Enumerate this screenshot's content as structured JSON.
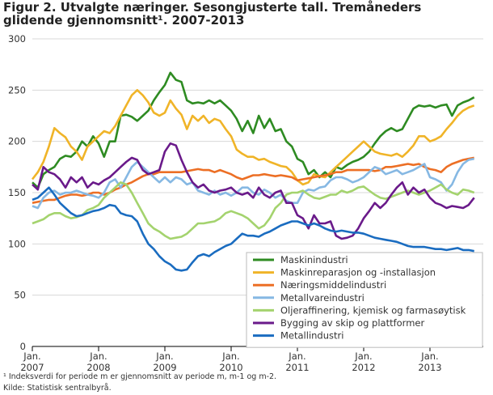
{
  "chart_data": {
    "type": "line",
    "title": "Figur 2. Utvalgte næringer. Sesongjusterte tall. Tremåneders glidende gjennomsnitt¹. 2007-2013",
    "notes": [
      "¹ Indeksverdi for periode m er gjennomsnitt av periode m, m-1 og m-2.",
      "Kilde: Statistisk sentralbyrå."
    ],
    "categories": [
      "Jan. 2007",
      null,
      null,
      null,
      null,
      null,
      null,
      null,
      null,
      null,
      null,
      null,
      "Jan. 2008",
      null,
      null,
      null,
      null,
      null,
      null,
      null,
      null,
      null,
      null,
      null,
      "Jan. 2009",
      null,
      null,
      null,
      null,
      null,
      null,
      null,
      null,
      null,
      null,
      null,
      "Jan. 2010",
      null,
      null,
      null,
      null,
      null,
      null,
      null,
      null,
      null,
      null,
      null,
      "Jan. 2011",
      null,
      null,
      null,
      null,
      null,
      null,
      null,
      null,
      null,
      null,
      null,
      "Jan. 2012",
      null,
      null,
      null,
      null,
      null,
      null,
      null,
      null,
      null,
      null,
      null,
      "Jan. 2013",
      null,
      null,
      null,
      null,
      null,
      null,
      null,
      null
    ],
    "ylim": [
      0,
      300
    ],
    "yticks": [
      0,
      50,
      100,
      150,
      200,
      250,
      300
    ],
    "grid": true,
    "legend": "bottom-right",
    "series": [
      {
        "name": "Maskinindustri",
        "color": "#2e8b22",
        "values": [
          160,
          155,
          168,
          172,
          175,
          183,
          186,
          185,
          190,
          200,
          195,
          205,
          198,
          185,
          200,
          200,
          225,
          226,
          224,
          220,
          225,
          230,
          240,
          248,
          255,
          267,
          260,
          258,
          240,
          237,
          238,
          237,
          240,
          237,
          240,
          235,
          230,
          222,
          210,
          220,
          208,
          225,
          213,
          222,
          210,
          212,
          200,
          195,
          183,
          180,
          168,
          172,
          165,
          170,
          165,
          175,
          173,
          177,
          180,
          182,
          185,
          190,
          198,
          205,
          210,
          213,
          210,
          212,
          222,
          232,
          235,
          234,
          235,
          233,
          235,
          236,
          225,
          235,
          238,
          240,
          243
        ]
      },
      {
        "name": "Maskinreparasjon og -installasjon",
        "color": "#f0b428",
        "values": [
          163,
          170,
          180,
          195,
          213,
          208,
          204,
          195,
          190,
          182,
          195,
          200,
          205,
          210,
          208,
          215,
          225,
          235,
          245,
          250,
          245,
          238,
          228,
          225,
          228,
          240,
          232,
          226,
          212,
          225,
          220,
          225,
          218,
          222,
          220,
          212,
          205,
          192,
          188,
          185,
          185,
          182,
          183,
          180,
          178,
          176,
          175,
          170,
          162,
          158,
          160,
          168,
          166,
          165,
          170,
          175,
          180,
          185,
          190,
          195,
          200,
          195,
          190,
          188,
          187,
          186,
          188,
          185,
          190,
          196,
          205,
          205,
          200,
          202,
          205,
          212,
          218,
          225,
          230,
          233,
          235
        ]
      },
      {
        "name": "Næringsmiddelindustri",
        "color": "#ec6f25",
        "values": [
          140,
          141,
          142,
          143,
          143,
          145,
          147,
          148,
          148,
          147,
          148,
          150,
          150,
          148,
          150,
          153,
          155,
          158,
          160,
          163,
          166,
          168,
          168,
          170,
          170,
          170,
          170,
          170,
          171,
          172,
          173,
          172,
          172,
          170,
          172,
          170,
          168,
          165,
          163,
          165,
          167,
          167,
          168,
          167,
          166,
          167,
          166,
          165,
          162,
          163,
          164,
          165,
          166,
          167,
          168,
          170,
          170,
          172,
          172,
          172,
          172,
          172,
          171,
          172,
          175,
          175,
          176,
          177,
          178,
          177,
          178,
          175,
          173,
          172,
          170,
          175,
          178,
          180,
          182,
          183,
          184
        ]
      },
      {
        "name": "Metallvareindustri",
        "color": "#86b8e3",
        "values": [
          137,
          135,
          145,
          150,
          152,
          148,
          150,
          150,
          152,
          150,
          148,
          147,
          145,
          150,
          160,
          163,
          155,
          165,
          175,
          180,
          175,
          170,
          165,
          160,
          165,
          160,
          165,
          163,
          158,
          160,
          152,
          150,
          148,
          152,
          148,
          150,
          147,
          150,
          155,
          155,
          150,
          148,
          153,
          150,
          145,
          148,
          142,
          140,
          140,
          150,
          153,
          152,
          155,
          156,
          162,
          165,
          165,
          163,
          160,
          162,
          165,
          170,
          175,
          173,
          168,
          170,
          172,
          168,
          170,
          172,
          175,
          178,
          165,
          163,
          160,
          152,
          158,
          170,
          178,
          182,
          183
        ]
      },
      {
        "name": "Oljeraffinering, kjemisk og farmasøytisk",
        "color": "#a4d36e",
        "values": [
          120,
          122,
          124,
          128,
          130,
          130,
          127,
          125,
          126,
          128,
          133,
          135,
          138,
          145,
          150,
          155,
          160,
          158,
          150,
          140,
          130,
          120,
          115,
          112,
          108,
          105,
          106,
          107,
          110,
          115,
          120,
          120,
          121,
          122,
          125,
          130,
          132,
          130,
          128,
          125,
          120,
          115,
          118,
          125,
          135,
          140,
          148,
          150,
          150,
          152,
          148,
          145,
          144,
          146,
          148,
          148,
          152,
          150,
          152,
          155,
          156,
          152,
          148,
          145,
          144,
          146,
          148,
          150,
          152,
          150,
          148,
          150,
          152,
          155,
          158,
          153,
          150,
          148,
          153,
          152,
          150
        ]
      },
      {
        "name": "Bygging av skip og plattformer",
        "color": "#6a1a8a",
        "values": [
          158,
          153,
          175,
          170,
          168,
          163,
          155,
          165,
          160,
          165,
          155,
          160,
          158,
          162,
          165,
          170,
          175,
          180,
          184,
          182,
          172,
          168,
          170,
          172,
          190,
          198,
          196,
          182,
          170,
          160,
          155,
          158,
          152,
          150,
          152,
          153,
          155,
          150,
          148,
          150,
          145,
          155,
          148,
          145,
          150,
          152,
          140,
          140,
          128,
          125,
          115,
          128,
          120,
          120,
          122,
          108,
          105,
          106,
          108,
          115,
          125,
          132,
          140,
          135,
          140,
          148,
          155,
          160,
          148,
          155,
          150,
          153,
          145,
          140,
          138,
          135,
          137,
          136,
          135,
          138,
          145
        ]
      },
      {
        "name": "Metallindustri",
        "color": "#1a6cc0",
        "values": [
          143,
          145,
          150,
          155,
          148,
          140,
          135,
          130,
          127,
          128,
          130,
          132,
          133,
          135,
          138,
          137,
          130,
          128,
          127,
          122,
          110,
          100,
          95,
          88,
          83,
          80,
          75,
          74,
          75,
          82,
          88,
          90,
          88,
          92,
          95,
          98,
          100,
          105,
          110,
          108,
          108,
          107,
          110,
          112,
          115,
          118,
          120,
          122,
          122,
          120,
          118,
          120,
          118,
          115,
          113,
          112,
          113,
          112,
          111,
          111,
          110,
          108,
          106,
          105,
          104,
          103,
          102,
          100,
          98,
          97,
          97,
          97,
          96,
          95,
          95,
          94,
          95,
          96,
          94,
          94,
          93
        ]
      }
    ]
  }
}
